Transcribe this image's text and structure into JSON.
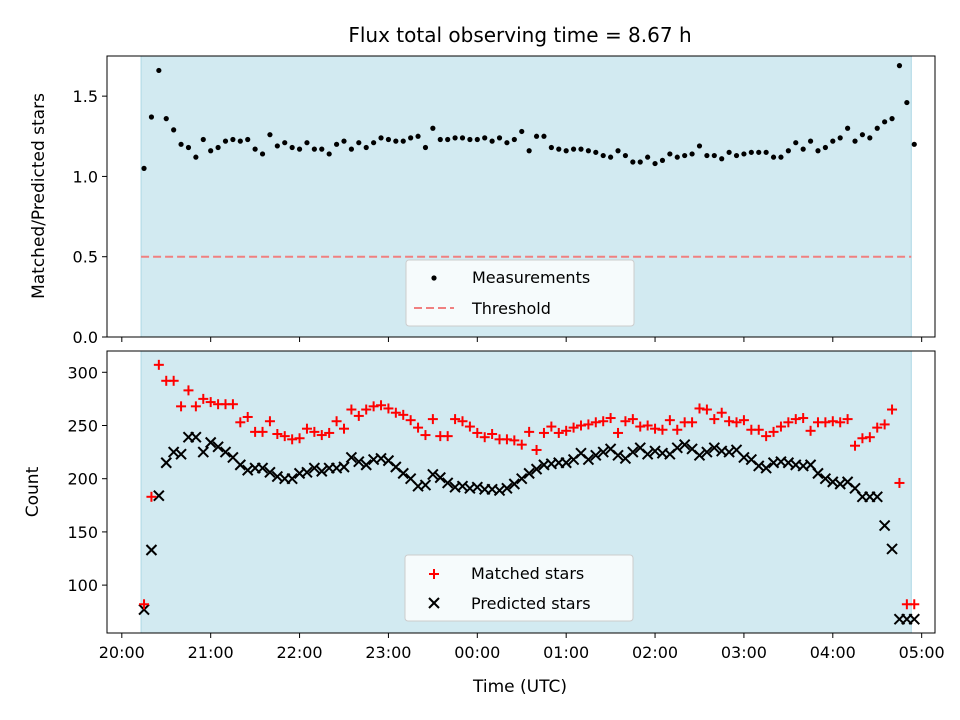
{
  "title": "Flux total observing time = 8.67 h",
  "colors": {
    "shade": "#add8e6",
    "matched": "#ff0000",
    "predicted": "#000000",
    "threshold": "#f08080",
    "measure": "#000000"
  },
  "chart_data": [
    {
      "type": "scatter",
      "ylabel": "Matched/Predicted stars",
      "ylim": [
        0,
        1.75
      ],
      "yticks": [
        0.0,
        0.5,
        1.0,
        1.5
      ],
      "ytick_labels": [
        "0.0",
        "0.5",
        "1.0",
        "1.5"
      ],
      "shaded_span": [
        "20:13",
        "04:53"
      ],
      "threshold": 0.5,
      "legend": {
        "position": "lower-center",
        "entries": [
          "Measurements",
          "Threshold"
        ]
      },
      "series": [
        {
          "name": "Measurements",
          "marker": "dot",
          "x": [
            "20:15",
            "20:20",
            "20:25",
            "20:30",
            "20:35",
            "20:40",
            "20:45",
            "20:50",
            "20:55",
            "21:00",
            "21:05",
            "21:10",
            "21:15",
            "21:20",
            "21:25",
            "21:30",
            "21:35",
            "21:40",
            "21:45",
            "21:50",
            "21:55",
            "22:00",
            "22:05",
            "22:10",
            "22:15",
            "22:20",
            "22:25",
            "22:30",
            "22:35",
            "22:40",
            "22:45",
            "22:50",
            "22:55",
            "23:00",
            "23:05",
            "23:10",
            "23:15",
            "23:20",
            "23:25",
            "23:30",
            "23:35",
            "23:40",
            "23:45",
            "23:50",
            "23:55",
            "00:00",
            "00:05",
            "00:10",
            "00:15",
            "00:20",
            "00:25",
            "00:30",
            "00:35",
            "00:40",
            "00:45",
            "00:50",
            "00:55",
            "01:00",
            "01:05",
            "01:10",
            "01:15",
            "01:20",
            "01:25",
            "01:30",
            "01:35",
            "01:40",
            "01:45",
            "01:50",
            "01:55",
            "02:00",
            "02:05",
            "02:10",
            "02:15",
            "02:20",
            "02:25",
            "02:30",
            "02:35",
            "02:40",
            "02:45",
            "02:50",
            "02:55",
            "03:00",
            "03:05",
            "03:10",
            "03:15",
            "03:20",
            "03:25",
            "03:30",
            "03:35",
            "03:40",
            "03:45",
            "03:50",
            "03:55",
            "04:00",
            "04:05",
            "04:10",
            "04:15",
            "04:20",
            "04:25",
            "04:30",
            "04:35",
            "04:40",
            "04:45",
            "04:50",
            "04:55"
          ],
          "y": [
            1.05,
            1.37,
            1.66,
            1.36,
            1.29,
            1.2,
            1.18,
            1.12,
            1.23,
            1.16,
            1.18,
            1.22,
            1.23,
            1.22,
            1.23,
            1.17,
            1.14,
            1.26,
            1.19,
            1.21,
            1.18,
            1.17,
            1.21,
            1.17,
            1.17,
            1.14,
            1.2,
            1.22,
            1.17,
            1.21,
            1.18,
            1.21,
            1.24,
            1.23,
            1.22,
            1.22,
            1.24,
            1.25,
            1.18,
            1.3,
            1.23,
            1.23,
            1.24,
            1.24,
            1.23,
            1.23,
            1.24,
            1.22,
            1.24,
            1.21,
            1.23,
            1.28,
            1.16,
            1.25,
            1.25,
            1.18,
            1.17,
            1.16,
            1.17,
            1.17,
            1.16,
            1.15,
            1.13,
            1.12,
            1.16,
            1.13,
            1.09,
            1.09,
            1.12,
            1.08,
            1.1,
            1.14,
            1.12,
            1.13,
            1.14,
            1.19,
            1.13,
            1.13,
            1.11,
            1.15,
            1.13,
            1.14,
            1.15,
            1.15,
            1.15,
            1.12,
            1.12,
            1.16,
            1.21,
            1.17,
            1.22,
            1.16,
            1.18,
            1.22,
            1.24,
            1.3,
            1.22,
            1.26,
            1.24,
            1.3,
            1.34,
            1.36,
            1.69,
            1.46,
            1.2
          ]
        }
      ]
    },
    {
      "type": "scatter",
      "ylabel": "Count",
      "xlabel": "Time (UTC)",
      "ylim": [
        55,
        320
      ],
      "yticks": [
        100,
        150,
        200,
        250,
        300
      ],
      "xlim": [
        "19:50",
        "05:09"
      ],
      "xticks": [
        "20:00",
        "21:00",
        "22:00",
        "23:00",
        "00:00",
        "01:00",
        "02:00",
        "03:00",
        "04:00",
        "05:00"
      ],
      "shaded_span": [
        "20:13",
        "04:53"
      ],
      "legend": {
        "position": "lower-center",
        "entries": [
          "Matched stars",
          "Predicted stars"
        ]
      },
      "series": [
        {
          "name": "Matched stars",
          "marker": "plus",
          "x": [
            "20:15",
            "20:20",
            "20:25",
            "20:30",
            "20:35",
            "20:40",
            "20:45",
            "20:50",
            "20:55",
            "21:00",
            "21:05",
            "21:10",
            "21:15",
            "21:20",
            "21:25",
            "21:30",
            "21:35",
            "21:40",
            "21:45",
            "21:50",
            "21:55",
            "22:00",
            "22:05",
            "22:10",
            "22:15",
            "22:20",
            "22:25",
            "22:30",
            "22:35",
            "22:40",
            "22:45",
            "22:50",
            "22:55",
            "23:00",
            "23:05",
            "23:10",
            "23:15",
            "23:20",
            "23:25",
            "23:30",
            "23:35",
            "23:40",
            "23:45",
            "23:50",
            "23:55",
            "00:00",
            "00:05",
            "00:10",
            "00:15",
            "00:20",
            "00:25",
            "00:30",
            "00:35",
            "00:40",
            "00:45",
            "00:50",
            "00:55",
            "01:00",
            "01:05",
            "01:10",
            "01:15",
            "01:20",
            "01:25",
            "01:30",
            "01:35",
            "01:40",
            "01:45",
            "01:50",
            "01:55",
            "02:00",
            "02:05",
            "02:10",
            "02:15",
            "02:20",
            "02:25",
            "02:30",
            "02:35",
            "02:40",
            "02:45",
            "02:50",
            "02:55",
            "03:00",
            "03:05",
            "03:10",
            "03:15",
            "03:20",
            "03:25",
            "03:30",
            "03:35",
            "03:40",
            "03:45",
            "03:50",
            "03:55",
            "04:00",
            "04:05",
            "04:10",
            "04:15",
            "04:20",
            "04:25",
            "04:30",
            "04:35",
            "04:40",
            "04:45",
            "04:50",
            "04:55"
          ],
          "y": [
            82,
            183,
            307,
            292,
            292,
            268,
            283,
            268,
            275,
            272,
            270,
            270,
            270,
            253,
            258,
            244,
            244,
            254,
            242,
            240,
            237,
            238,
            247,
            244,
            241,
            243,
            254,
            247,
            265,
            259,
            265,
            268,
            269,
            266,
            262,
            260,
            255,
            248,
            241,
            256,
            240,
            240,
            256,
            254,
            249,
            243,
            239,
            242,
            237,
            237,
            236,
            232,
            244,
            227,
            243,
            249,
            243,
            245,
            248,
            250,
            251,
            253,
            254,
            257,
            243,
            254,
            256,
            249,
            250,
            247,
            246,
            255,
            246,
            253,
            253,
            266,
            265,
            256,
            262,
            254,
            253,
            255,
            246,
            246,
            240,
            244,
            249,
            253,
            256,
            257,
            245,
            253,
            253,
            254,
            253,
            256,
            231,
            238,
            239,
            248,
            251,
            265,
            196,
            82,
            82
          ]
        },
        {
          "name": "Predicted stars",
          "marker": "x",
          "x": [
            "20:15",
            "20:20",
            "20:25",
            "20:30",
            "20:35",
            "20:40",
            "20:45",
            "20:50",
            "20:55",
            "21:00",
            "21:05",
            "21:10",
            "21:15",
            "21:20",
            "21:25",
            "21:30",
            "21:35",
            "21:40",
            "21:45",
            "21:50",
            "21:55",
            "22:00",
            "22:05",
            "22:10",
            "22:15",
            "22:20",
            "22:25",
            "22:30",
            "22:35",
            "22:40",
            "22:45",
            "22:50",
            "22:55",
            "23:00",
            "23:05",
            "23:10",
            "23:15",
            "23:20",
            "23:25",
            "23:30",
            "23:35",
            "23:40",
            "23:45",
            "23:50",
            "23:55",
            "00:00",
            "00:05",
            "00:10",
            "00:15",
            "00:20",
            "00:25",
            "00:30",
            "00:35",
            "00:40",
            "00:45",
            "00:50",
            "00:55",
            "01:00",
            "01:05",
            "01:10",
            "01:15",
            "01:20",
            "01:25",
            "01:30",
            "01:35",
            "01:40",
            "01:45",
            "01:50",
            "01:55",
            "02:00",
            "02:05",
            "02:10",
            "02:15",
            "02:20",
            "02:25",
            "02:30",
            "02:35",
            "02:40",
            "02:45",
            "02:50",
            "02:55",
            "03:00",
            "03:05",
            "03:10",
            "03:15",
            "03:20",
            "03:25",
            "03:30",
            "03:35",
            "03:40",
            "03:45",
            "03:50",
            "03:55",
            "04:00",
            "04:05",
            "04:10",
            "04:15",
            "04:20",
            "04:25",
            "04:30",
            "04:35",
            "04:40",
            "04:45",
            "04:50",
            "04:55"
          ],
          "y": [
            77,
            133,
            184,
            215,
            225,
            223,
            239,
            239,
            225,
            234,
            230,
            225,
            220,
            213,
            208,
            210,
            210,
            206,
            202,
            200,
            200,
            205,
            206,
            210,
            207,
            210,
            210,
            211,
            220,
            216,
            213,
            218,
            219,
            217,
            211,
            205,
            200,
            193,
            194,
            204,
            201,
            196,
            192,
            193,
            191,
            192,
            190,
            190,
            189,
            191,
            195,
            200,
            205,
            209,
            213,
            214,
            215,
            215,
            218,
            224,
            218,
            222,
            225,
            228,
            222,
            219,
            225,
            229,
            223,
            226,
            224,
            223,
            229,
            232,
            228,
            222,
            225,
            229,
            226,
            225,
            227,
            220,
            218,
            212,
            210,
            215,
            216,
            215,
            213,
            212,
            213,
            205,
            200,
            197,
            195,
            197,
            191,
            183,
            183,
            183,
            156,
            134,
            68,
            68,
            68
          ]
        }
      ]
    }
  ]
}
